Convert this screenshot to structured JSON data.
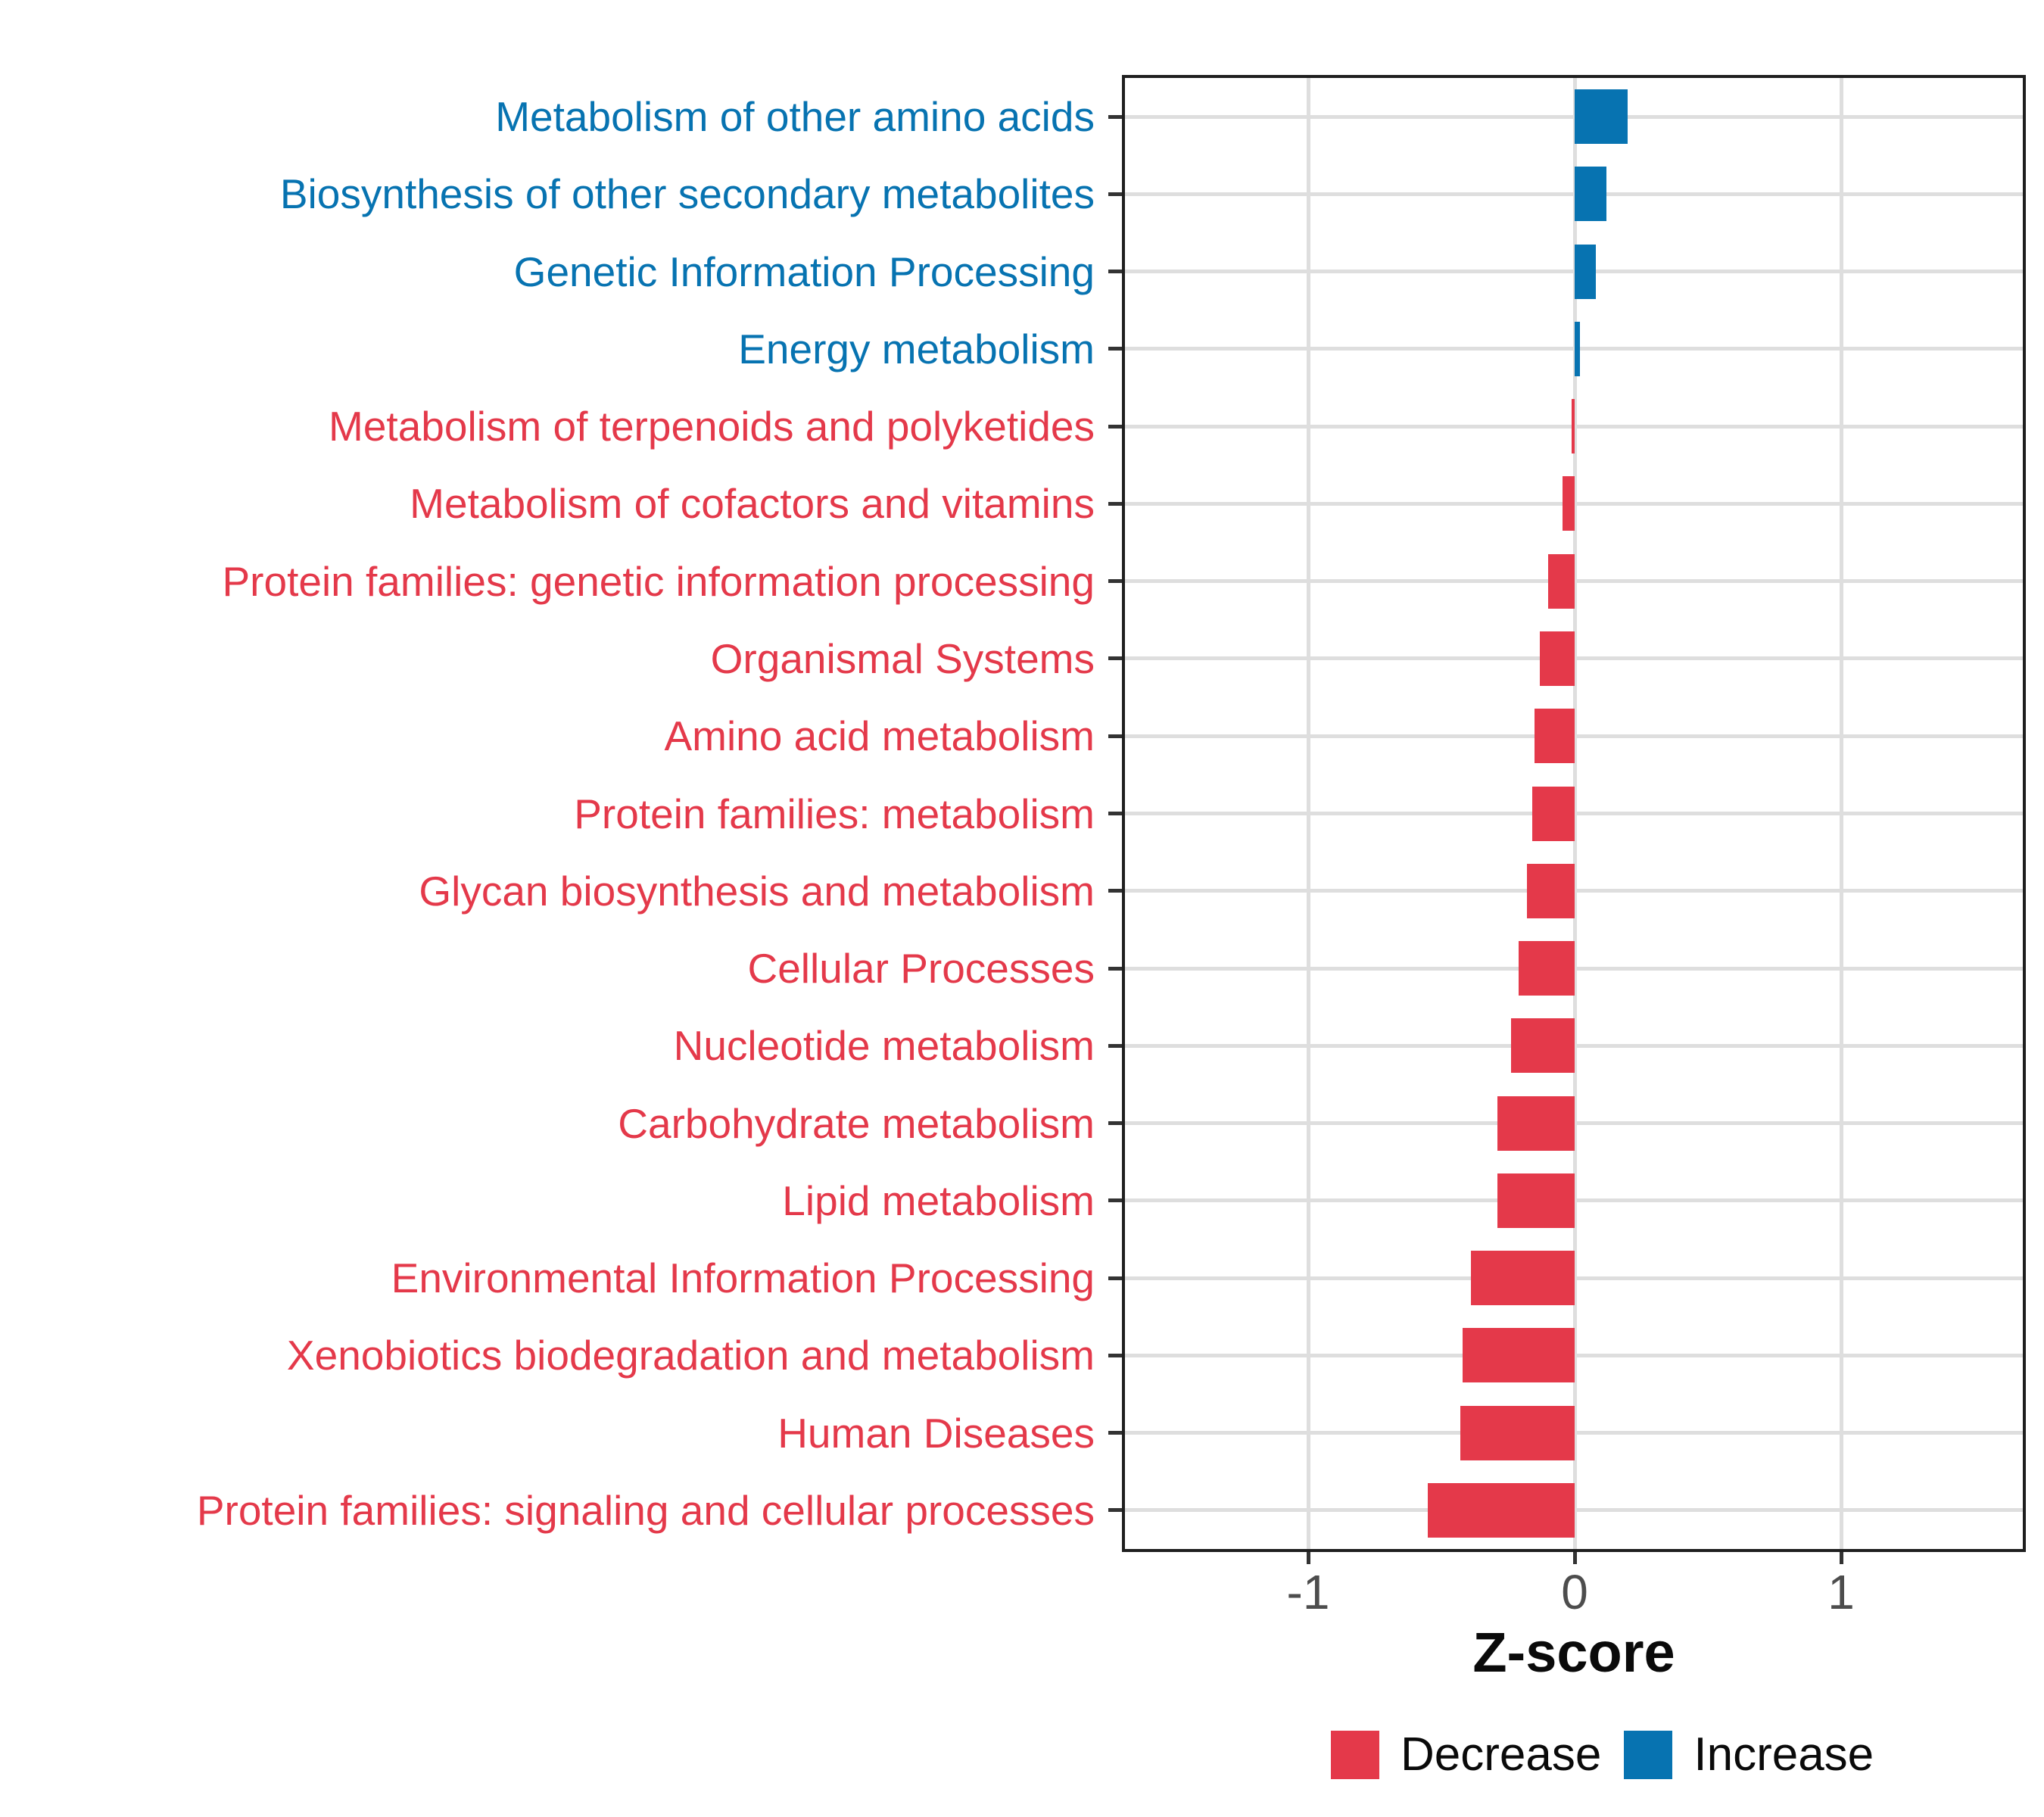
{
  "chart_data": {
    "type": "bar",
    "orientation": "horizontal",
    "xlabel": "Z-score",
    "xlim": [
      -1.7,
      1.7
    ],
    "grid": true,
    "categories": [
      "Metabolism of other amino acids",
      "Biosynthesis of other secondary metabolites",
      "Genetic Information Processing",
      "Energy metabolism",
      "Metabolism of terpenoids and polyketides",
      "Metabolism of cofactors and vitamins",
      "Protein families: genetic information processing",
      "Organismal Systems",
      "Amino acid metabolism",
      "Protein families: metabolism",
      "Glycan biosynthesis and metabolism",
      "Cellular Processes",
      "Nucleotide metabolism",
      "Carbohydrate metabolism",
      "Lipid metabolism",
      "Environmental Information Processing",
      "Xenobiotics biodegradation and metabolism",
      "Human Diseases",
      "Protein families: signaling and cellular processes"
    ],
    "values": [
      0.2,
      0.12,
      0.08,
      0.02,
      -0.01,
      -0.045,
      -0.1,
      -0.13,
      -0.15,
      -0.16,
      -0.18,
      -0.21,
      -0.24,
      -0.29,
      -0.29,
      -0.39,
      -0.42,
      -0.43,
      -0.55
    ],
    "xticks": {
      "values": [
        -1,
        0,
        1
      ],
      "labels": [
        "-1",
        "0",
        "1"
      ]
    },
    "legend_position": "bottom"
  },
  "legend": {
    "decrease_label": "Decrease",
    "increase_label": "Increase"
  },
  "colors": {
    "decrease": "#E4394A",
    "increase": "#0773B1",
    "gridline": "#DEDEDE",
    "axis_text": "#4D4D4D",
    "panel_border": "#1F1F1F"
  }
}
